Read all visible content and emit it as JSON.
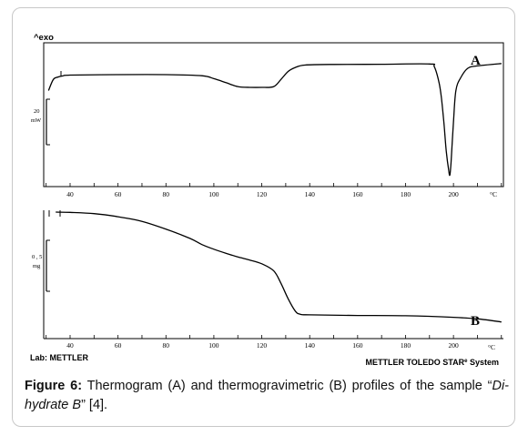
{
  "chart_data": [
    {
      "type": "line",
      "curve_label": "A",
      "corner_label": "^exo",
      "scale_label_value": "20",
      "scale_label_unit": "mW",
      "xlim": [
        28,
        222
      ],
      "x_ticks": [
        "40",
        "60",
        "80",
        "100",
        "120",
        "140",
        "160",
        "180",
        "200"
      ],
      "x_unit": "°C",
      "series": [
        {
          "x": [
            31,
            33,
            35,
            37,
            40,
            60,
            80,
            95,
            100,
            105,
            110,
            115,
            120,
            125,
            128,
            131,
            134,
            138,
            150,
            170,
            190,
            192,
            194,
            195,
            196,
            197,
            198,
            198.5,
            199,
            200,
            201,
            203,
            206,
            210,
            220
          ],
          "y": [
            -10,
            -3,
            -1.5,
            -0.8,
            -0.3,
            0,
            0,
            -0.7,
            -2.5,
            -5,
            -7.5,
            -8,
            -8,
            -7.5,
            -3,
            2,
            4.5,
            6,
            6.4,
            6.5,
            6.7,
            5,
            -5,
            -15,
            -30,
            -48,
            -60,
            -63,
            -55,
            -30,
            -10,
            -2,
            4,
            5.5,
            7
          ]
        }
      ]
    },
    {
      "type": "line",
      "curve_label": "B",
      "scale_label_value": "0 , 5",
      "scale_label_unit": "mg",
      "xlim": [
        28,
        222
      ],
      "x_ticks": [
        "40",
        "60",
        "80",
        "100",
        "120",
        "140",
        "160",
        "180",
        "200"
      ],
      "x_unit": "°C",
      "series": [
        {
          "x": [
            34,
            40,
            50,
            60,
            70,
            80,
            90,
            95,
            100,
            105,
            110,
            115,
            120,
            125,
            128,
            131,
            134,
            136,
            140,
            160,
            180,
            200,
            210,
            220
          ],
          "y": [
            0,
            -0.1,
            -0.5,
            -1.5,
            -3,
            -5.5,
            -8.5,
            -10.5,
            -12,
            -13.3,
            -14.5,
            -15.5,
            -16.7,
            -19,
            -23,
            -28,
            -32,
            -33,
            -33.2,
            -33.4,
            -33.5,
            -34,
            -34.5,
            -35.5
          ]
        }
      ]
    }
  ],
  "footer": {
    "lab_label": "Lab: METTLER",
    "system_label": "METTLER TOLEDO STAR",
    "system_reg": "e",
    "system_suffix": " System"
  },
  "caption": {
    "fig_label": "Figure 6:",
    "text_before": " Thermogram (A) and thermogravimetric (B) profiles of the sample “",
    "sample_name": "Di-hydrate B",
    "text_after": "” [4]."
  }
}
